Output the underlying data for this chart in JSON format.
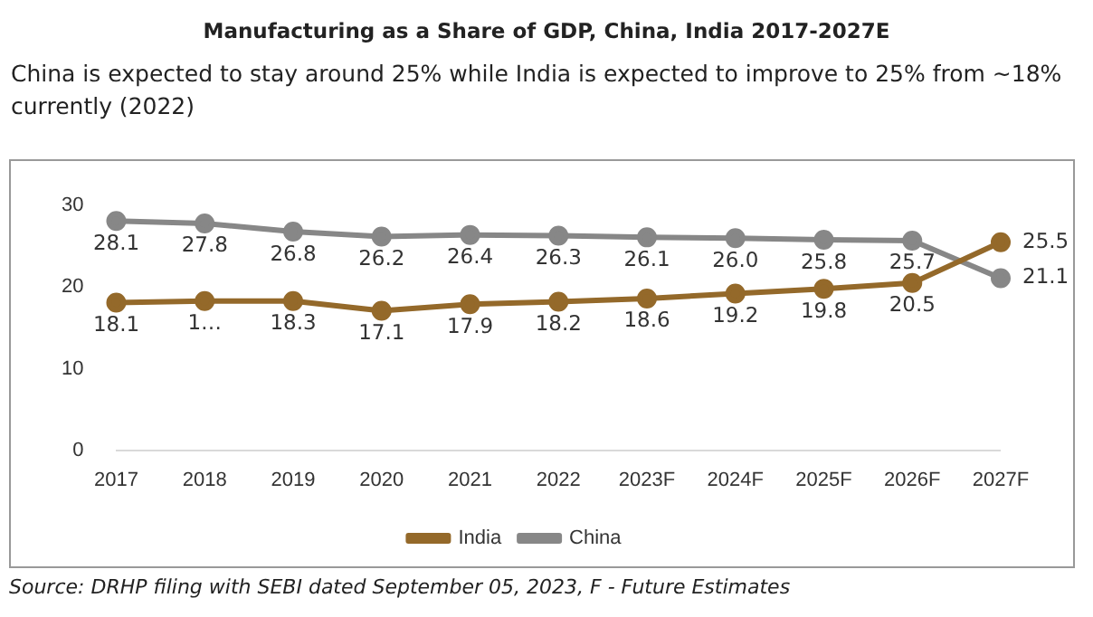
{
  "chart_data": {
    "type": "line",
    "title": "Manufacturing as a Share of GDP, China, India 2017-2027E",
    "subtitle": "China is expected to stay around 25% while India is expected to improve to 25% from ~18% currently (2022)",
    "categories": [
      "2017",
      "2018",
      "2019",
      "2020",
      "2021",
      "2022",
      "2023F",
      "2024F",
      "2025F",
      "2026F",
      "2027F"
    ],
    "series": [
      {
        "name": "India",
        "color": "#94692a",
        "values": [
          18.1,
          18.3,
          18.3,
          17.1,
          17.9,
          18.2,
          18.6,
          19.2,
          19.8,
          20.5,
          25.5
        ],
        "value_labels": [
          "18.1",
          "1…",
          "18.3",
          "17.1",
          "17.9",
          "18.2",
          "18.6",
          "19.2",
          "19.8",
          "20.5",
          "25.5"
        ]
      },
      {
        "name": "China",
        "color": "#878787",
        "values": [
          28.1,
          27.8,
          26.8,
          26.2,
          26.4,
          26.3,
          26.1,
          26.0,
          25.8,
          25.7,
          21.1
        ],
        "value_labels": [
          "28.1",
          "27.8",
          "26.8",
          "26.2",
          "26.4",
          "26.3",
          "26.1",
          "26.0",
          "25.8",
          "25.7",
          "21.1"
        ]
      }
    ],
    "ylim": [
      0,
      30
    ],
    "yticks": [
      0,
      10,
      20,
      30
    ],
    "grid": false,
    "legend": "bottom",
    "marker": "circle",
    "line_style": "solid",
    "annotations": [
      "Source: DRHP filing with SEBI dated September 05, 2023, F - Future Estimates"
    ]
  }
}
